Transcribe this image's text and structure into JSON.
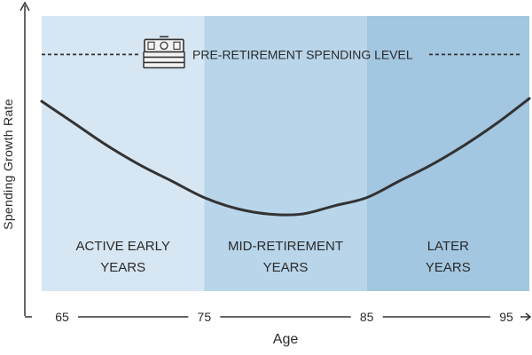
{
  "chart_data": {
    "type": "line",
    "title": "",
    "xlabel": "Age",
    "ylabel": "Spending Growth Rate",
    "x_ticks": [
      "65",
      "75",
      "85",
      "95"
    ],
    "xlim": [
      65,
      95
    ],
    "ylim": [
      0,
      1
    ],
    "phases": [
      {
        "label_lines": [
          "ACTIVE EARLY",
          "YEARS"
        ],
        "start": 65,
        "end": 75,
        "color": "#d6e6f2"
      },
      {
        "label_lines": [
          "MID-RETIREMENT",
          "YEARS"
        ],
        "start": 75,
        "end": 85,
        "color": "#b8d5ea"
      },
      {
        "label_lines": [
          "LATER",
          "YEARS"
        ],
        "start": 85,
        "end": 95,
        "color": "#a3c6e1"
      }
    ],
    "reference_line": {
      "label": "PRE-RETIREMENT SPENDING LEVEL",
      "y": 0.86,
      "icon": "cash-stack-icon"
    },
    "series": [
      {
        "x": [
          65,
          67,
          69,
          71,
          73,
          75,
          77,
          79,
          81,
          83,
          85,
          87,
          89,
          91,
          93,
          95
        ],
        "y": [
          0.69,
          0.61,
          0.53,
          0.46,
          0.4,
          0.34,
          0.3,
          0.28,
          0.28,
          0.31,
          0.34,
          0.4,
          0.46,
          0.53,
          0.61,
          0.7
        ]
      }
    ],
    "grid": false,
    "legend": "none"
  },
  "colors": {
    "curve": "#333333",
    "axis": "#333333",
    "reference_line": "#333333"
  }
}
